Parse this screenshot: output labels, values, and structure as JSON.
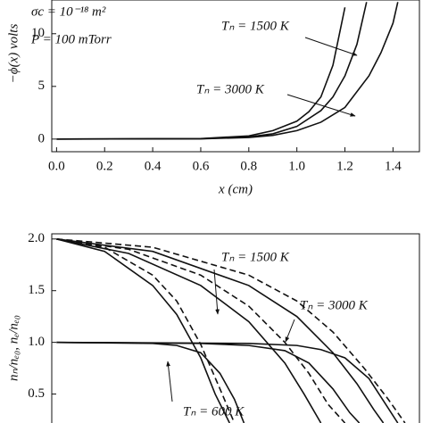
{
  "chart_data": [
    {
      "type": "line",
      "xlabel": "x (cm)",
      "ylabel": "−ϕ(x) volts",
      "xlim": [
        -0.02,
        1.51
      ],
      "ylim": [
        -1.2,
        13.2
      ],
      "xticks": [
        {
          "value": 0,
          "label": "0.0"
        },
        0.2,
        0.4,
        0.6,
        0.8,
        {
          "value": 1,
          "label": "1.0"
        },
        1.2,
        1.4
      ],
      "yticks": [
        0,
        5,
        10
      ],
      "annotations": [
        "σc = 10⁻¹⁸ m²",
        "P = 100 mTorr",
        "Tₙ = 1500 K",
        "Tₙ = 3000 K"
      ],
      "series": [
        {
          "color": "#111",
          "x": [
            0,
            0.6,
            0.8,
            0.9,
            1.0,
            1.05,
            1.1,
            1.15,
            1.2
          ],
          "values": [
            0,
            0.05,
            0.3,
            0.8,
            1.7,
            2.6,
            4,
            7,
            12.5
          ]
        },
        {
          "color": "#111",
          "x": [
            0,
            0.6,
            0.8,
            0.9,
            1.0,
            1.1,
            1.15,
            1.2,
            1.25,
            1.29
          ],
          "values": [
            0,
            0.03,
            0.2,
            0.5,
            1.2,
            2.7,
            4,
            6,
            9,
            13
          ]
        },
        {
          "color": "#111",
          "x": [
            0,
            0.6,
            0.8,
            0.9,
            1.0,
            1.1,
            1.2,
            1.3,
            1.35,
            1.4,
            1.42
          ],
          "values": [
            0,
            0.02,
            0.15,
            0.35,
            0.8,
            1.6,
            3,
            6,
            8.2,
            11,
            13
          ]
        }
      ]
    },
    {
      "type": "line",
      "ylabel": "nₙ/nₑ₀,  nₑ/nₑ₀",
      "xlim": [
        -0.02,
        1.51
      ],
      "ylim": [
        0.22,
        2.05
      ],
      "yticks": [
        {
          "value": 2,
          "label": "2.0"
        },
        1.5,
        {
          "value": 1,
          "label": "1.0"
        },
        0.5
      ],
      "annotations": [
        "Tₙ = 1500 K",
        "Tₙ = 3000 K",
        "Tₙ = 600 K"
      ],
      "series": [
        {
          "color": "#111",
          "dash": true,
          "x": [
            0,
            0.2,
            0.4,
            0.5,
            0.6,
            0.68,
            0.74
          ],
          "values": [
            2,
            1.92,
            1.65,
            1.4,
            0.98,
            0.55,
            0.22
          ]
        },
        {
          "color": "#111",
          "x": [
            0,
            0.2,
            0.4,
            0.5,
            0.6,
            0.66,
            0.72
          ],
          "values": [
            2,
            1.88,
            1.55,
            1.27,
            0.85,
            0.5,
            0.22
          ]
        },
        {
          "color": "#111",
          "x": [
            0,
            0.4,
            0.5,
            0.6,
            0.68,
            0.74,
            0.78
          ],
          "values": [
            1,
            0.99,
            0.97,
            0.9,
            0.7,
            0.45,
            0.22
          ]
        },
        {
          "color": "#111",
          "dash": true,
          "x": [
            0,
            0.3,
            0.6,
            0.8,
            0.95,
            1.05,
            1.13,
            1.2
          ],
          "values": [
            2,
            1.9,
            1.65,
            1.35,
            1.0,
            0.7,
            0.4,
            0.22
          ]
        },
        {
          "color": "#111",
          "x": [
            0,
            0.3,
            0.6,
            0.8,
            0.95,
            1.03,
            1.1
          ],
          "values": [
            2,
            1.86,
            1.55,
            1.2,
            0.8,
            0.5,
            0.22
          ]
        },
        {
          "color": "#111",
          "x": [
            0,
            0.6,
            0.8,
            0.95,
            1.05,
            1.15,
            1.22,
            1.26
          ],
          "values": [
            1,
            0.99,
            0.97,
            0.92,
            0.8,
            0.55,
            0.32,
            0.22
          ]
        },
        {
          "color": "#111",
          "dash": true,
          "x": [
            0,
            0.4,
            0.8,
            1.0,
            1.15,
            1.28,
            1.38,
            1.45
          ],
          "values": [
            2,
            1.92,
            1.65,
            1.4,
            1.1,
            0.75,
            0.45,
            0.22
          ]
        },
        {
          "color": "#111",
          "x": [
            0,
            0.4,
            0.8,
            1.0,
            1.15,
            1.25,
            1.32,
            1.36
          ],
          "values": [
            2,
            1.88,
            1.55,
            1.25,
            0.9,
            0.6,
            0.35,
            0.22
          ]
        },
        {
          "color": "#111",
          "x": [
            0,
            0.8,
            1.0,
            1.1,
            1.2,
            1.3,
            1.37,
            1.42
          ],
          "values": [
            1,
            0.99,
            0.97,
            0.93,
            0.85,
            0.65,
            0.4,
            0.22
          ]
        }
      ]
    }
  ]
}
